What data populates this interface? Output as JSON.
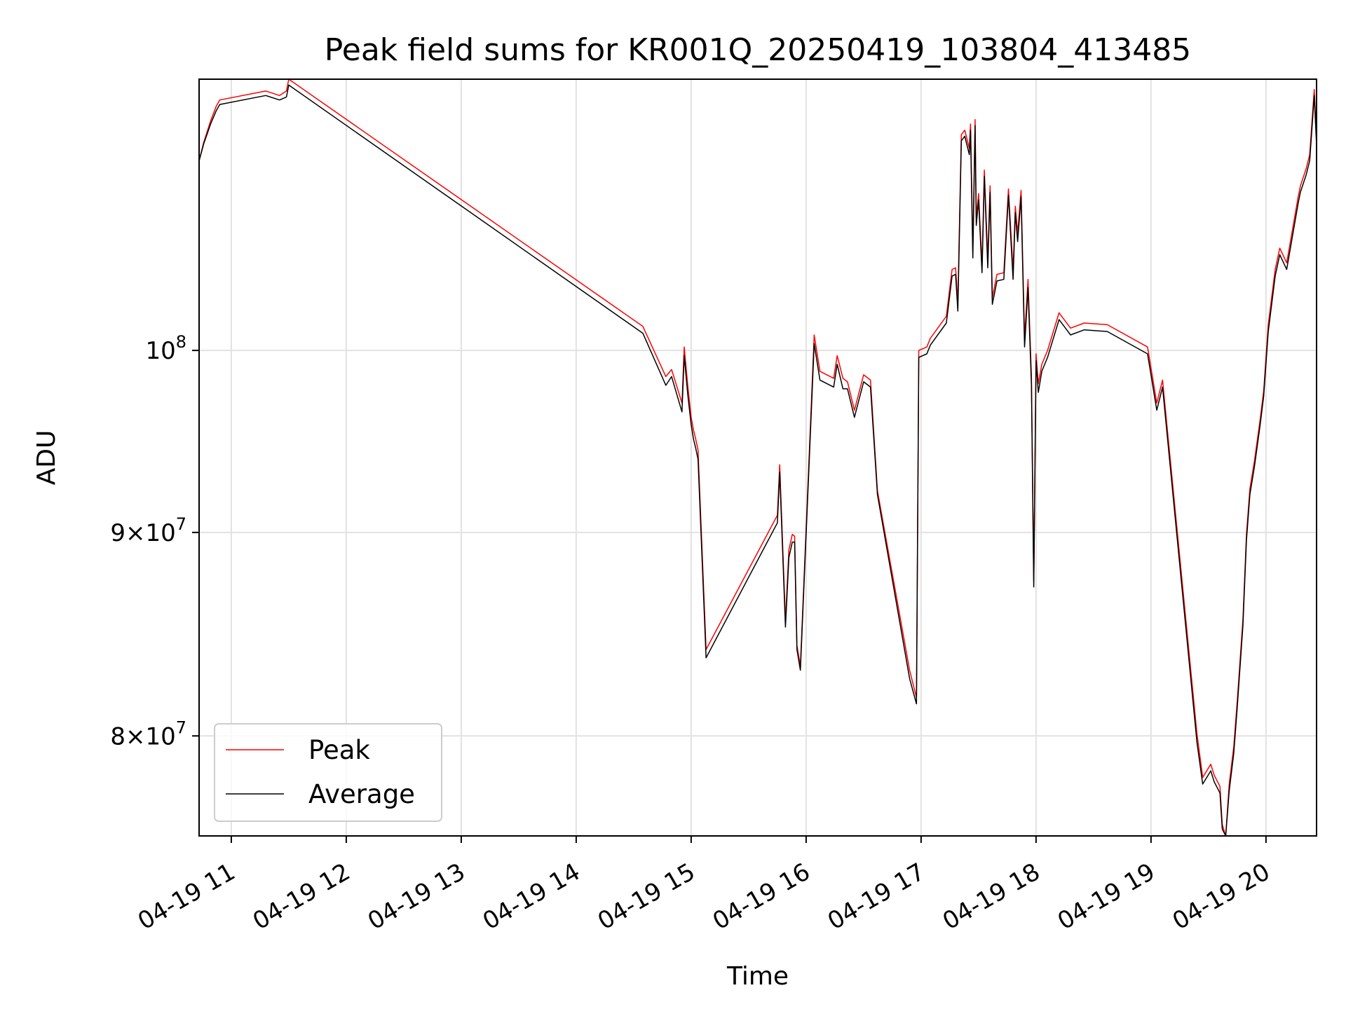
{
  "chart_data": {
    "type": "line",
    "title": "Peak field sums for KR001Q_20250419_103804_413485",
    "xlabel": "Time",
    "ylabel": "ADU",
    "yscale": "log",
    "xlim": [
      10.72,
      20.44
    ],
    "ylim": [
      75500000,
      117000000
    ],
    "grid": true,
    "legend_position": "lower-left",
    "x_ticks": [
      {
        "value": 11,
        "label": "04-19 11"
      },
      {
        "value": 12,
        "label": "04-19 12"
      },
      {
        "value": 13,
        "label": "04-19 13"
      },
      {
        "value": 14,
        "label": "04-19 14"
      },
      {
        "value": 15,
        "label": "04-19 15"
      },
      {
        "value": 16,
        "label": "04-19 16"
      },
      {
        "value": 17,
        "label": "04-19 17"
      },
      {
        "value": 18,
        "label": "04-19 18"
      },
      {
        "value": 19,
        "label": "04-19 19"
      },
      {
        "value": 20,
        "label": "04-19 20"
      }
    ],
    "y_ticks": [
      {
        "value": 80000000,
        "base": "8",
        "exp": "7"
      },
      {
        "value": 90000000,
        "base": "9",
        "exp": "7"
      },
      {
        "value": 100000000,
        "base": "",
        "exp": "8"
      }
    ],
    "series": [
      {
        "name": "Peak",
        "color": "#ff0000",
        "x": [
          10.72,
          10.76,
          10.82,
          10.87,
          10.9,
          11.3,
          11.42,
          11.48,
          11.5,
          14.58,
          14.78,
          14.83,
          14.92,
          14.94,
          14.97,
          15.0,
          15.02,
          15.04,
          15.06,
          15.13,
          15.75,
          15.77,
          15.82,
          15.85,
          15.88,
          15.9,
          15.92,
          15.95,
          16.07,
          16.12,
          16.24,
          16.27,
          16.32,
          16.36,
          16.42,
          16.5,
          16.56,
          16.62,
          16.9,
          16.96,
          16.98,
          17.05,
          17.08,
          17.22,
          17.27,
          17.3,
          17.32,
          17.35,
          17.38,
          17.42,
          17.43,
          17.45,
          17.47,
          17.48,
          17.5,
          17.53,
          17.55,
          17.58,
          17.6,
          17.62,
          17.66,
          17.72,
          17.76,
          17.8,
          17.82,
          17.84,
          17.87,
          17.9,
          17.93,
          17.96,
          17.98,
          18.0,
          18.02,
          18.05,
          18.1,
          18.2,
          18.3,
          18.42,
          18.62,
          18.97,
          19.05,
          19.1,
          19.4,
          19.45,
          19.52,
          19.55,
          19.6,
          19.62,
          19.65,
          19.68,
          19.72,
          19.75,
          19.8,
          19.83,
          19.86,
          19.9,
          19.95,
          19.98,
          20.02,
          20.08,
          20.12,
          20.18,
          20.22,
          20.28,
          20.3,
          20.35,
          20.38,
          20.42,
          20.44
        ],
        "values": [
          111600000,
          112800000,
          114200000,
          115200000,
          115600000,
          116200000,
          115900000,
          116200000,
          117000000,
          101400000,
          98500000,
          98900000,
          97000000,
          100200000,
          98000000,
          96200000,
          95500000,
          95000000,
          94400000,
          84100000,
          90900000,
          93600000,
          85500000,
          89100000,
          89900000,
          89800000,
          84300000,
          83300000,
          100900000,
          98800000,
          98400000,
          99700000,
          98400000,
          98200000,
          96600000,
          98600000,
          98300000,
          92200000,
          83100000,
          81800000,
          100000000,
          100200000,
          100700000,
          102000000,
          104800000,
          104900000,
          102800000,
          113300000,
          113600000,
          112400000,
          114000000,
          106000000,
          114300000,
          108000000,
          109500000,
          105000000,
          111000000,
          105400000,
          110000000,
          103100000,
          104500000,
          104600000,
          109800000,
          104700000,
          108700000,
          107000000,
          109700000,
          100700000,
          104200000,
          98500000,
          87500000,
          99800000,
          98100000,
          99200000,
          100000000,
          102200000,
          101300000,
          101600000,
          101500000,
          100200000,
          97000000,
          98300000,
          80100000,
          78100000,
          78700000,
          78200000,
          77700000,
          76000000,
          75500000,
          77800000,
          79500000,
          81600000,
          85600000,
          89900000,
          92300000,
          93800000,
          96100000,
          97700000,
          101500000,
          104800000,
          106100000,
          105200000,
          106800000,
          109300000,
          110000000,
          111100000,
          112000000,
          116300000,
          113000000
        ]
      },
      {
        "name": "Average",
        "color": "#000000",
        "x": [
          10.72,
          10.76,
          10.82,
          10.87,
          10.9,
          11.3,
          11.42,
          11.48,
          11.5,
          14.58,
          14.78,
          14.83,
          14.92,
          14.94,
          14.97,
          15.0,
          15.02,
          15.04,
          15.06,
          15.13,
          15.75,
          15.77,
          15.82,
          15.85,
          15.88,
          15.9,
          15.92,
          15.95,
          16.07,
          16.12,
          16.24,
          16.27,
          16.32,
          16.36,
          16.42,
          16.5,
          16.56,
          16.62,
          16.9,
          16.96,
          16.98,
          17.05,
          17.08,
          17.22,
          17.27,
          17.3,
          17.32,
          17.35,
          17.38,
          17.42,
          17.43,
          17.45,
          17.47,
          17.48,
          17.5,
          17.53,
          17.55,
          17.58,
          17.6,
          17.62,
          17.66,
          17.72,
          17.76,
          17.8,
          17.82,
          17.84,
          17.87,
          17.9,
          17.93,
          17.96,
          17.98,
          18.0,
          18.02,
          18.05,
          18.1,
          18.2,
          18.3,
          18.42,
          18.62,
          18.97,
          19.05,
          19.1,
          19.4,
          19.45,
          19.52,
          19.55,
          19.6,
          19.62,
          19.65,
          19.68,
          19.72,
          19.75,
          19.8,
          19.83,
          19.86,
          19.9,
          19.95,
          19.98,
          20.02,
          20.08,
          20.12,
          20.18,
          20.22,
          20.28,
          20.3,
          20.35,
          20.38,
          20.42,
          20.44
        ],
        "values": [
          111600000,
          112700000,
          114000000,
          114900000,
          115300000,
          115900000,
          115600000,
          115800000,
          116600000,
          101000000,
          98000000,
          98500000,
          96500000,
          99700000,
          97500000,
          95800000,
          95000000,
          94500000,
          93900000,
          83700000,
          90500000,
          93200000,
          85200000,
          88700000,
          89500000,
          89500000,
          84100000,
          83100000,
          100400000,
          98300000,
          97900000,
          99200000,
          97800000,
          97800000,
          96200000,
          98200000,
          97900000,
          92000000,
          82700000,
          81500000,
          99600000,
          99800000,
          100300000,
          101600000,
          104400000,
          104500000,
          102300000,
          112900000,
          113200000,
          112000000,
          113600000,
          105500000,
          113900000,
          107500000,
          109100000,
          104600000,
          110600000,
          104900000,
          109600000,
          102700000,
          104100000,
          104200000,
          109400000,
          104200000,
          108300000,
          106500000,
          109300000,
          100200000,
          103700000,
          98000000,
          87200000,
          99400000,
          97600000,
          98800000,
          99600000,
          101800000,
          100900000,
          101200000,
          101100000,
          99800000,
          96600000,
          97900000,
          79700000,
          77800000,
          78400000,
          77900000,
          77400000,
          75800000,
          75500000,
          77500000,
          79200000,
          81300000,
          85300000,
          89600000,
          92000000,
          93500000,
          95800000,
          97400000,
          101100000,
          104400000,
          105700000,
          104800000,
          106400000,
          108900000,
          109600000,
          110700000,
          111600000,
          115900000,
          112600000
        ]
      }
    ]
  }
}
